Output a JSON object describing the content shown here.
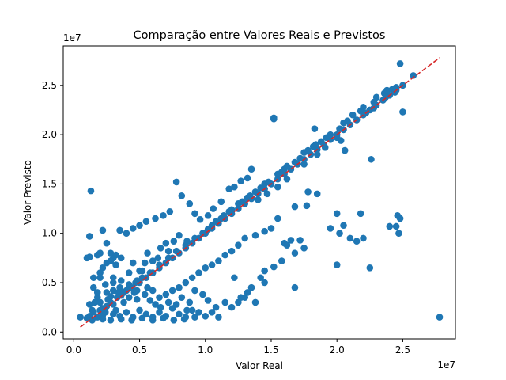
{
  "chart_data": {
    "type": "scatter",
    "title": "Comparação entre Valores Reais e Previstos",
    "xlabel": "Valor Real",
    "ylabel": "Valor Previsto",
    "x_offset_text": "1e7",
    "y_offset_text": "1e7",
    "xlim": [
      -0.08,
      2.9
    ],
    "ylim": [
      -0.07,
      2.9
    ],
    "xticks": [
      0.0,
      0.5,
      1.0,
      1.5,
      2.0,
      2.5
    ],
    "yticks": [
      0.0,
      0.5,
      1.0,
      1.5,
      2.0,
      2.5
    ],
    "xtick_labels": [
      "0.0",
      "0.5",
      "1.0",
      "1.5",
      "2.0",
      "2.5"
    ],
    "ytick_labels": [
      "0.0",
      "0.5",
      "1.0",
      "1.5",
      "2.0",
      "2.5"
    ],
    "grid": false,
    "point_color": "#1f77b4",
    "line_color": "#d62728",
    "reference_line": {
      "label": "",
      "style": "dashed",
      "x": [
        0.05,
        2.78
      ],
      "y": [
        0.05,
        2.78
      ]
    },
    "points": [
      [
        0.05,
        0.15
      ],
      [
        0.1,
        0.14
      ],
      [
        0.12,
        0.16
      ],
      [
        0.15,
        0.2
      ],
      [
        0.18,
        0.15
      ],
      [
        0.2,
        0.22
      ],
      [
        0.22,
        0.17
      ],
      [
        0.25,
        0.26
      ],
      [
        0.12,
        0.28
      ],
      [
        0.14,
        0.22
      ],
      [
        0.16,
        0.3
      ],
      [
        0.18,
        0.35
      ],
      [
        0.2,
        0.3
      ],
      [
        0.22,
        0.24
      ],
      [
        0.24,
        0.2
      ],
      [
        0.26,
        0.33
      ],
      [
        0.28,
        0.36
      ],
      [
        0.3,
        0.28
      ],
      [
        0.32,
        0.22
      ],
      [
        0.34,
        0.4
      ],
      [
        0.36,
        0.37
      ],
      [
        0.38,
        0.3
      ],
      [
        0.4,
        0.42
      ],
      [
        0.42,
        0.35
      ],
      [
        0.44,
        0.45
      ],
      [
        0.46,
        0.4
      ],
      [
        0.48,
        0.33
      ],
      [
        0.5,
        0.5
      ],
      [
        0.3,
        0.18
      ],
      [
        0.35,
        0.16
      ],
      [
        0.4,
        0.2
      ],
      [
        0.45,
        0.15
      ],
      [
        0.5,
        0.22
      ],
      [
        0.55,
        0.18
      ],
      [
        0.6,
        0.15
      ],
      [
        0.65,
        0.2
      ],
      [
        0.7,
        0.16
      ],
      [
        0.75,
        0.24
      ],
      [
        0.8,
        0.18
      ],
      [
        0.85,
        0.15
      ],
      [
        0.9,
        0.22
      ],
      [
        0.95,
        0.2
      ],
      [
        1.0,
        0.16
      ],
      [
        1.05,
        0.2
      ],
      [
        1.1,
        0.15
      ],
      [
        0.15,
        0.45
      ],
      [
        0.2,
        0.55
      ],
      [
        0.25,
        0.4
      ],
      [
        0.3,
        0.5
      ],
      [
        0.35,
        0.45
      ],
      [
        0.2,
        0.6
      ],
      [
        0.25,
        0.7
      ],
      [
        0.3,
        0.55
      ],
      [
        0.45,
        0.7
      ],
      [
        0.5,
        0.62
      ],
      [
        0.55,
        0.55
      ],
      [
        0.6,
        0.6
      ],
      [
        0.65,
        0.65
      ],
      [
        0.7,
        0.7
      ],
      [
        0.75,
        0.75
      ],
      [
        0.8,
        0.8
      ],
      [
        0.85,
        0.85
      ],
      [
        0.9,
        0.9
      ],
      [
        0.95,
        0.95
      ],
      [
        1.0,
        1.0
      ],
      [
        1.05,
        1.05
      ],
      [
        1.1,
        1.1
      ],
      [
        1.15,
        1.15
      ],
      [
        1.2,
        1.2
      ],
      [
        1.25,
        1.25
      ],
      [
        1.3,
        1.3
      ],
      [
        1.35,
        1.35
      ],
      [
        1.4,
        1.4
      ],
      [
        1.45,
        1.45
      ],
      [
        1.5,
        1.5
      ],
      [
        1.55,
        1.55
      ],
      [
        1.6,
        1.6
      ],
      [
        1.65,
        1.65
      ],
      [
        1.7,
        1.7
      ],
      [
        1.75,
        1.75
      ],
      [
        1.8,
        1.8
      ],
      [
        1.85,
        1.85
      ],
      [
        1.9,
        1.9
      ],
      [
        1.95,
        1.95
      ],
      [
        2.0,
        2.0
      ],
      [
        2.05,
        2.05
      ],
      [
        2.1,
        2.1
      ],
      [
        2.15,
        2.15
      ],
      [
        2.2,
        2.2
      ],
      [
        2.25,
        2.25
      ],
      [
        2.3,
        2.3
      ],
      [
        2.35,
        2.35
      ],
      [
        2.4,
        2.4
      ],
      [
        2.45,
        2.45
      ],
      [
        2.5,
        2.5
      ],
      [
        2.58,
        2.6
      ],
      [
        2.48,
        2.72
      ],
      [
        2.45,
        2.48
      ],
      [
        2.38,
        2.45
      ],
      [
        2.3,
        2.38
      ],
      [
        2.2,
        2.28
      ],
      [
        2.12,
        2.2
      ],
      [
        2.05,
        2.12
      ],
      [
        1.95,
        2.0
      ],
      [
        1.88,
        1.93
      ],
      [
        1.82,
        1.88
      ],
      [
        1.75,
        1.82
      ],
      [
        1.68,
        1.72
      ],
      [
        1.6,
        1.65
      ],
      [
        1.55,
        1.6
      ],
      [
        1.45,
        1.5
      ],
      [
        1.38,
        1.42
      ],
      [
        1.32,
        1.36
      ],
      [
        1.25,
        1.3
      ],
      [
        1.18,
        1.22
      ],
      [
        1.12,
        1.15
      ],
      [
        1.05,
        1.08
      ],
      [
        0.98,
        1.0
      ],
      [
        0.92,
        0.95
      ],
      [
        0.85,
        0.88
      ],
      [
        0.78,
        0.82
      ],
      [
        0.72,
        0.75
      ],
      [
        0.65,
        0.68
      ],
      [
        0.58,
        0.6
      ],
      [
        0.52,
        0.55
      ],
      [
        0.47,
        0.5
      ],
      [
        0.43,
        0.45
      ],
      [
        0.38,
        0.4
      ],
      [
        0.33,
        0.35
      ],
      [
        0.28,
        0.3
      ],
      [
        1.02,
        1.04
      ],
      [
        1.08,
        1.12
      ],
      [
        1.14,
        1.18
      ],
      [
        1.2,
        1.24
      ],
      [
        1.28,
        1.32
      ],
      [
        1.34,
        1.38
      ],
      [
        1.42,
        1.46
      ],
      [
        1.48,
        1.52
      ],
      [
        1.58,
        1.62
      ],
      [
        1.62,
        1.68
      ],
      [
        1.72,
        1.76
      ],
      [
        1.78,
        1.84
      ],
      [
        1.84,
        1.9
      ],
      [
        1.92,
        1.97
      ],
      [
        2.02,
        2.06
      ],
      [
        2.08,
        2.14
      ],
      [
        2.18,
        2.24
      ],
      [
        2.28,
        2.33
      ],
      [
        2.36,
        2.42
      ],
      [
        2.42,
        2.46
      ],
      [
        1.52,
        2.16
      ],
      [
        1.52,
        2.17
      ],
      [
        1.83,
        2.06
      ],
      [
        2.0,
        1.97
      ],
      [
        1.85,
        1.8
      ],
      [
        1.75,
        1.7
      ],
      [
        1.62,
        1.55
      ],
      [
        1.55,
        1.47
      ],
      [
        1.47,
        1.4
      ],
      [
        1.4,
        1.34
      ],
      [
        1.35,
        1.65
      ],
      [
        1.32,
        1.56
      ],
      [
        1.27,
        1.53
      ],
      [
        1.22,
        1.47
      ],
      [
        1.18,
        1.45
      ],
      [
        1.12,
        1.32
      ],
      [
        1.06,
        1.25
      ],
      [
        1.02,
        1.18
      ],
      [
        0.96,
        1.14
      ],
      [
        0.92,
        1.2
      ],
      [
        0.88,
        1.3
      ],
      [
        0.82,
        1.38
      ],
      [
        0.78,
        1.52
      ],
      [
        0.73,
        1.22
      ],
      [
        0.68,
        1.18
      ],
      [
        0.62,
        1.15
      ],
      [
        0.55,
        1.12
      ],
      [
        0.5,
        1.08
      ],
      [
        0.45,
        1.05
      ],
      [
        0.4,
        1.0
      ],
      [
        0.35,
        1.03
      ],
      [
        0.1,
        0.75
      ],
      [
        0.12,
        0.97
      ],
      [
        0.15,
        0.55
      ],
      [
        0.2,
        0.8
      ],
      [
        0.22,
        1.03
      ],
      [
        0.25,
        0.9
      ],
      [
        0.28,
        0.8
      ],
      [
        0.3,
        0.75
      ],
      [
        0.32,
        0.78
      ],
      [
        0.13,
        1.43
      ],
      [
        0.12,
        0.76
      ],
      [
        0.18,
        0.78
      ],
      [
        0.22,
        0.65
      ],
      [
        0.28,
        0.72
      ],
      [
        0.32,
        0.68
      ],
      [
        0.36,
        0.75
      ],
      [
        0.42,
        0.6
      ],
      [
        0.48,
        0.52
      ],
      [
        0.52,
        0.62
      ],
      [
        0.56,
        0.8
      ],
      [
        0.6,
        0.72
      ],
      [
        0.66,
        0.85
      ],
      [
        0.7,
        0.9
      ],
      [
        0.76,
        0.92
      ],
      [
        0.8,
        0.98
      ],
      [
        0.86,
        0.92
      ],
      [
        0.72,
        0.82
      ],
      [
        0.64,
        0.75
      ],
      [
        0.54,
        0.7
      ],
      [
        2.22,
        2.22
      ],
      [
        2.28,
        2.27
      ],
      [
        2.37,
        2.38
      ],
      [
        2.44,
        2.43
      ],
      [
        2.5,
        2.23
      ],
      [
        2.26,
        1.75
      ],
      [
        2.06,
        1.84
      ],
      [
        2.03,
        1.94
      ],
      [
        1.91,
        1.87
      ],
      [
        1.78,
        1.42
      ],
      [
        1.77,
        1.28
      ],
      [
        1.68,
        1.27
      ],
      [
        1.55,
        1.15
      ],
      [
        1.5,
        1.05
      ],
      [
        1.45,
        1.02
      ],
      [
        1.38,
        0.98
      ],
      [
        1.3,
        0.95
      ],
      [
        1.25,
        0.88
      ],
      [
        1.2,
        0.82
      ],
      [
        1.15,
        0.78
      ],
      [
        1.1,
        0.72
      ],
      [
        1.05,
        0.68
      ],
      [
        1.0,
        0.65
      ],
      [
        0.95,
        0.6
      ],
      [
        0.9,
        0.55
      ],
      [
        0.85,
        0.5
      ],
      [
        0.8,
        0.45
      ],
      [
        0.75,
        0.42
      ],
      [
        0.7,
        0.38
      ],
      [
        0.65,
        0.35
      ],
      [
        1.6,
        0.9
      ],
      [
        1.62,
        0.88
      ],
      [
        1.65,
        0.93
      ],
      [
        1.72,
        0.93
      ],
      [
        1.75,
        0.85
      ],
      [
        1.68,
        0.8
      ],
      [
        1.58,
        0.72
      ],
      [
        1.52,
        0.66
      ],
      [
        1.45,
        0.62
      ],
      [
        1.42,
        0.55
      ],
      [
        1.35,
        0.45
      ],
      [
        1.3,
        0.35
      ],
      [
        1.25,
        0.3
      ],
      [
        1.2,
        0.25
      ],
      [
        1.15,
        0.3
      ],
      [
        1.08,
        0.25
      ],
      [
        1.02,
        0.32
      ],
      [
        0.98,
        0.38
      ],
      [
        0.92,
        0.42
      ],
      [
        0.88,
        0.3
      ],
      [
        1.95,
        1.05
      ],
      [
        2.02,
        1.0
      ],
      [
        2.1,
        0.95
      ],
      [
        2.15,
        0.92
      ],
      [
        2.2,
        0.95
      ],
      [
        2.0,
        0.68
      ],
      [
        2.25,
        0.65
      ],
      [
        2.4,
        1.07
      ],
      [
        2.45,
        1.07
      ],
      [
        2.47,
        1.0
      ],
      [
        2.18,
        1.2
      ],
      [
        2.05,
        1.08
      ],
      [
        2.0,
        1.2
      ],
      [
        1.85,
        1.4
      ],
      [
        1.68,
        0.45
      ],
      [
        1.45,
        0.5
      ],
      [
        1.38,
        0.3
      ],
      [
        1.32,
        0.4
      ],
      [
        1.27,
        0.35
      ],
      [
        1.22,
        0.55
      ],
      [
        2.48,
        1.15
      ],
      [
        2.46,
        1.18
      ],
      [
        2.78,
        0.15
      ],
      [
        0.14,
        0.12
      ],
      [
        0.22,
        0.13
      ],
      [
        0.28,
        0.12
      ],
      [
        0.36,
        0.13
      ],
      [
        0.44,
        0.12
      ],
      [
        0.52,
        0.14
      ],
      [
        0.6,
        0.12
      ],
      [
        0.68,
        0.14
      ],
      [
        0.76,
        0.12
      ],
      [
        0.84,
        0.13
      ],
      [
        0.92,
        0.15
      ],
      [
        0.18,
        0.4
      ],
      [
        0.24,
        0.48
      ],
      [
        0.3,
        0.42
      ],
      [
        0.36,
        0.52
      ],
      [
        0.42,
        0.48
      ],
      [
        0.48,
        0.42
      ],
      [
        0.54,
        0.38
      ],
      [
        0.58,
        0.32
      ],
      [
        0.62,
        0.28
      ],
      [
        0.66,
        0.25
      ],
      [
        0.72,
        0.3
      ],
      [
        0.78,
        0.28
      ],
      [
        0.82,
        0.35
      ],
      [
        0.86,
        0.22
      ],
      [
        0.56,
        0.45
      ],
      [
        0.6,
        0.42
      ]
    ]
  }
}
